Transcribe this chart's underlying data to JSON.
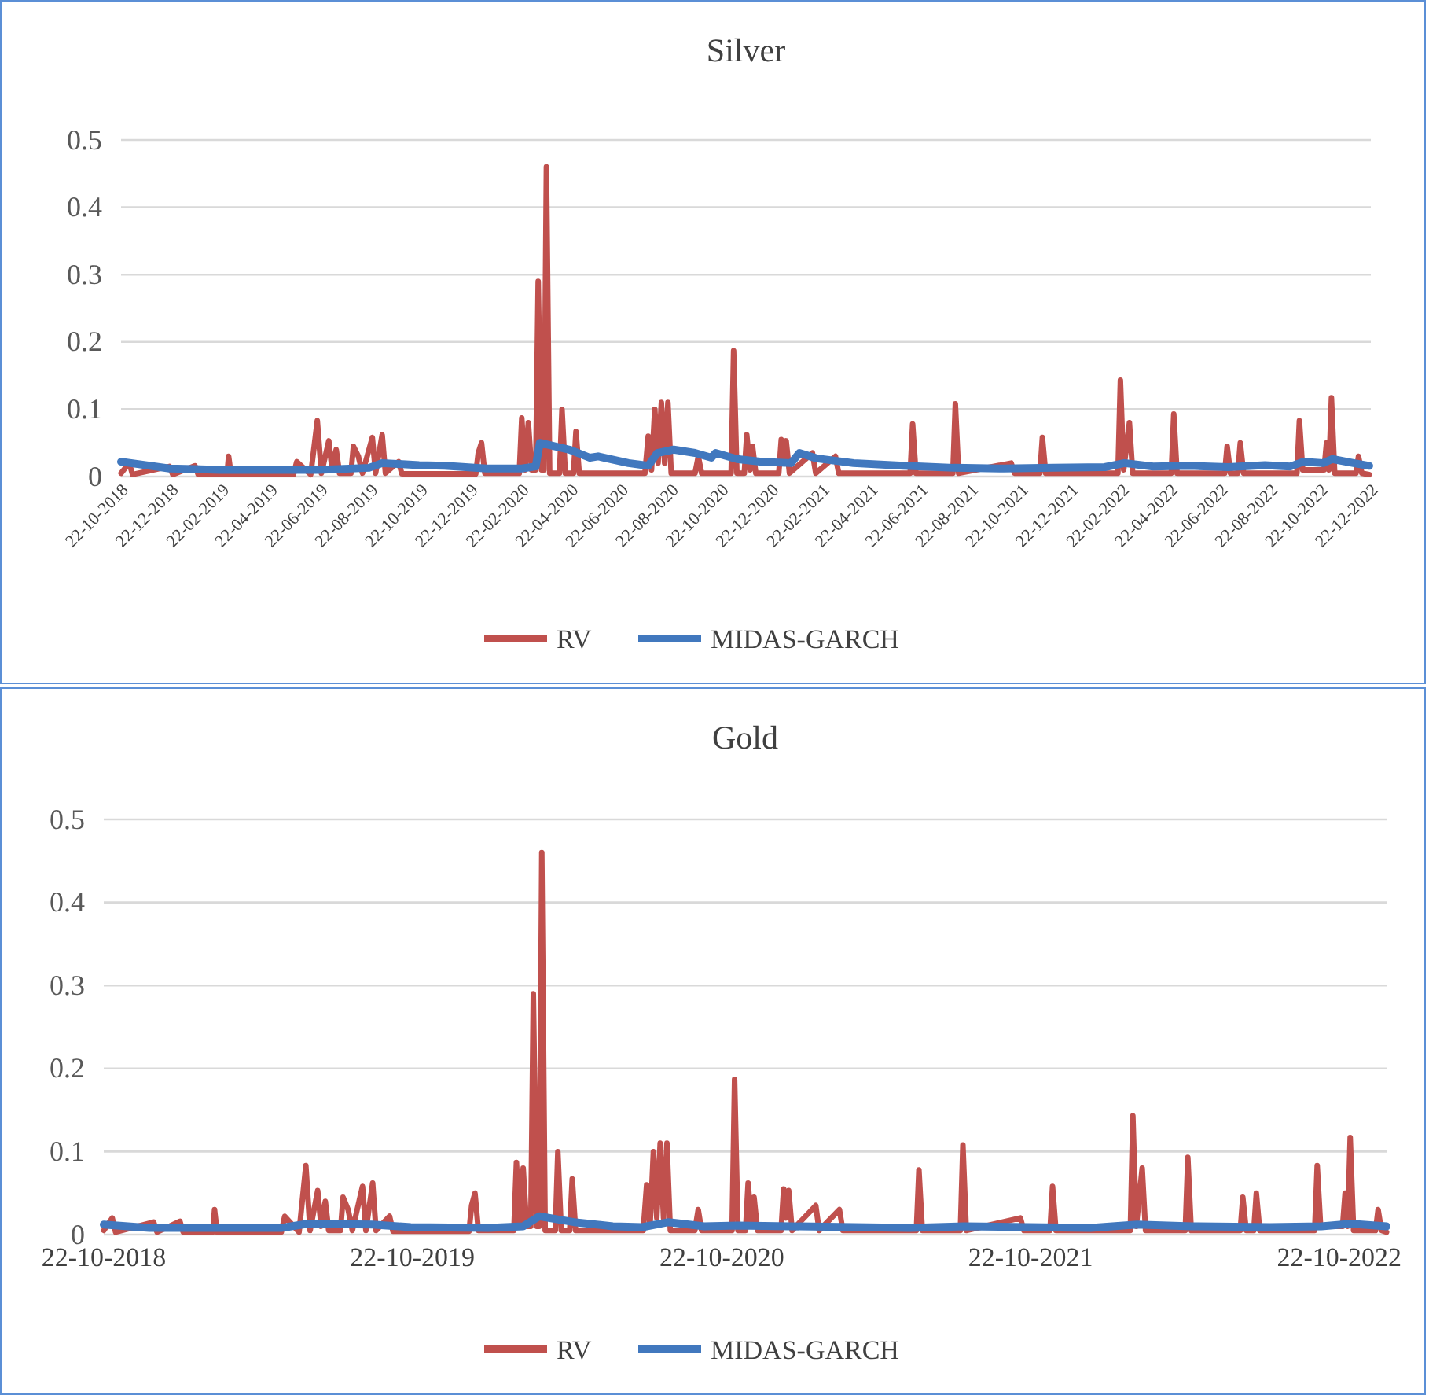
{
  "chart_data": [
    {
      "type": "line",
      "title": "Silver",
      "xlim": [
        "2018-10-22",
        "2022-12-22"
      ],
      "ylim": [
        0,
        0.5
      ],
      "yticks": [
        0,
        0.1,
        0.2,
        0.3,
        0.4,
        0.5
      ],
      "grid": "y",
      "legend": "bottom",
      "xticks": [
        {
          "value": "2018-10-22",
          "label": "22-10-2018"
        },
        {
          "value": "2018-12-22",
          "label": "22-12-2018"
        },
        {
          "value": "2019-02-22",
          "label": "22-02-2019"
        },
        {
          "value": "2019-04-22",
          "label": "22-04-2019"
        },
        {
          "value": "2019-06-22",
          "label": "22-06-2019"
        },
        {
          "value": "2019-08-22",
          "label": "22-08-2019"
        },
        {
          "value": "2019-10-22",
          "label": "22-10-2019"
        },
        {
          "value": "2019-12-22",
          "label": "22-12-2019"
        },
        {
          "value": "2020-02-22",
          "label": "22-02-2020"
        },
        {
          "value": "2020-04-22",
          "label": "22-04-2020"
        },
        {
          "value": "2020-06-22",
          "label": "22-06-2020"
        },
        {
          "value": "2020-08-22",
          "label": "22-08-2020"
        },
        {
          "value": "2020-10-22",
          "label": "22-10-2020"
        },
        {
          "value": "2020-12-22",
          "label": "22-12-2020"
        },
        {
          "value": "2021-02-22",
          "label": "22-02-2021"
        },
        {
          "value": "2021-04-22",
          "label": "22-04-2021"
        },
        {
          "value": "2021-06-22",
          "label": "22-06-2021"
        },
        {
          "value": "2021-08-22",
          "label": "22-08-2021"
        },
        {
          "value": "2021-10-22",
          "label": "22-10-2021"
        },
        {
          "value": "2021-12-22",
          "label": "22-12-2021"
        },
        {
          "value": "2022-02-22",
          "label": "22-02-2022"
        },
        {
          "value": "2022-04-22",
          "label": "22-04-2022"
        },
        {
          "value": "2022-06-22",
          "label": "22-06-2022"
        },
        {
          "value": "2022-08-22",
          "label": "22-08-2022"
        },
        {
          "value": "2022-10-22",
          "label": "22-10-2022"
        },
        {
          "value": "2022-12-22",
          "label": "22-12-2022"
        }
      ],
      "series": [
        {
          "name": "RV",
          "color": "#c0504d",
          "x": [
            "2018-10-22",
            "2018-11-01",
            "2018-11-05",
            "2018-12-20",
            "2018-12-24",
            "2019-01-20",
            "2019-01-24",
            "2019-02-28",
            "2019-03-02",
            "2019-03-05",
            "2019-05-20",
            "2019-05-24",
            "2019-06-10",
            "2019-06-18",
            "2019-06-23",
            "2019-07-02",
            "2019-07-06",
            "2019-07-11",
            "2019-07-15",
            "2019-07-29",
            "2019-08-01",
            "2019-08-07",
            "2019-08-12",
            "2019-08-24",
            "2019-08-28",
            "2019-09-05",
            "2019-09-09",
            "2019-09-25",
            "2019-09-29",
            "2019-12-28",
            "2019-12-31",
            "2020-01-04",
            "2020-01-08",
            "2020-02-19",
            "2020-02-22",
            "2020-02-26",
            "2020-03-01",
            "2020-03-05",
            "2020-03-10",
            "2020-03-13",
            "2020-03-17",
            "2020-03-20",
            "2020-03-23",
            "2020-03-27",
            "2020-04-08",
            "2020-04-11",
            "2020-04-15",
            "2020-04-25",
            "2020-04-28",
            "2020-05-02",
            "2020-07-21",
            "2020-07-25",
            "2020-07-29",
            "2020-08-02",
            "2020-08-06",
            "2020-08-10",
            "2020-08-14",
            "2020-08-18",
            "2020-08-22",
            "2020-09-20",
            "2020-09-24",
            "2020-09-28",
            "2020-11-03",
            "2020-11-06",
            "2020-11-10",
            "2020-11-19",
            "2020-11-22",
            "2020-11-26",
            "2020-11-29",
            "2020-12-03",
            "2020-12-31",
            "2021-01-03",
            "2021-01-06",
            "2021-01-09",
            "2021-01-13",
            "2021-02-10",
            "2021-02-14",
            "2021-03-10",
            "2021-03-14",
            "2021-06-09",
            "2021-06-12",
            "2021-06-16",
            "2021-07-31",
            "2021-08-03",
            "2021-08-07",
            "2021-10-10",
            "2021-10-14",
            "2021-11-14",
            "2021-11-17",
            "2021-11-21",
            "2022-02-17",
            "2022-02-20",
            "2022-02-24",
            "2022-03-03",
            "2022-03-07",
            "2022-04-23",
            "2022-04-26",
            "2022-04-30",
            "2022-06-27",
            "2022-06-30",
            "2022-07-04",
            "2022-07-13",
            "2022-07-16",
            "2022-07-20",
            "2022-09-23",
            "2022-09-26",
            "2022-09-30",
            "2022-10-26",
            "2022-10-29",
            "2022-11-01",
            "2022-11-04",
            "2022-11-08",
            "2022-12-04",
            "2022-12-07",
            "2022-12-11",
            "2022-12-20"
          ],
          "values": [
            0.005,
            0.02,
            0.003,
            0.015,
            0.003,
            0.016,
            0.003,
            0.003,
            0.03,
            0.003,
            0.003,
            0.022,
            0.003,
            0.083,
            0.005,
            0.053,
            0.01,
            0.04,
            0.005,
            0.005,
            0.045,
            0.03,
            0.005,
            0.058,
            0.005,
            0.062,
            0.005,
            0.022,
            0.004,
            0.004,
            0.035,
            0.05,
            0.005,
            0.005,
            0.087,
            0.01,
            0.08,
            0.01,
            0.01,
            0.29,
            0.01,
            0.01,
            0.46,
            0.005,
            0.005,
            0.1,
            0.005,
            0.005,
            0.067,
            0.005,
            0.005,
            0.06,
            0.01,
            0.1,
            0.02,
            0.11,
            0.02,
            0.11,
            0.005,
            0.005,
            0.03,
            0.005,
            0.005,
            0.187,
            0.005,
            0.005,
            0.062,
            0.01,
            0.045,
            0.005,
            0.005,
            0.055,
            0.02,
            0.053,
            0.005,
            0.035,
            0.005,
            0.03,
            0.005,
            0.005,
            0.078,
            0.005,
            0.005,
            0.108,
            0.005,
            0.02,
            0.005,
            0.005,
            0.058,
            0.005,
            0.005,
            0.143,
            0.01,
            0.08,
            0.005,
            0.005,
            0.093,
            0.005,
            0.005,
            0.045,
            0.005,
            0.005,
            0.05,
            0.005,
            0.005,
            0.083,
            0.01,
            0.01,
            0.05,
            0.01,
            0.117,
            0.005,
            0.005,
            0.03,
            0.005,
            0.003
          ]
        },
        {
          "name": "MIDAS-GARCH",
          "color": "#4178be",
          "x": [
            "2018-10-22",
            "2018-12-20",
            "2019-02-20",
            "2019-06-20",
            "2019-08-20",
            "2019-09-05",
            "2019-10-20",
            "2019-11-20",
            "2020-01-10",
            "2020-02-22",
            "2020-03-10",
            "2020-03-15",
            "2020-04-20",
            "2020-05-15",
            "2020-05-25",
            "2020-07-01",
            "2020-07-25",
            "2020-08-05",
            "2020-08-25",
            "2020-09-20",
            "2020-10-10",
            "2020-10-15",
            "2020-11-10",
            "2020-12-10",
            "2021-01-15",
            "2021-01-25",
            "2021-02-15",
            "2021-04-01",
            "2021-06-01",
            "2021-08-01",
            "2021-10-01",
            "2021-12-01",
            "2022-02-01",
            "2022-02-25",
            "2022-04-01",
            "2022-05-15",
            "2022-07-01",
            "2022-08-15",
            "2022-09-15",
            "2022-10-01",
            "2022-10-25",
            "2022-11-05",
            "2022-12-01",
            "2022-12-20"
          ],
          "values": [
            0.022,
            0.012,
            0.01,
            0.01,
            0.013,
            0.02,
            0.017,
            0.016,
            0.012,
            0.012,
            0.015,
            0.05,
            0.04,
            0.028,
            0.03,
            0.02,
            0.016,
            0.035,
            0.04,
            0.035,
            0.028,
            0.035,
            0.026,
            0.022,
            0.02,
            0.035,
            0.027,
            0.02,
            0.016,
            0.013,
            0.012,
            0.013,
            0.014,
            0.02,
            0.015,
            0.016,
            0.014,
            0.017,
            0.015,
            0.022,
            0.02,
            0.026,
            0.02,
            0.016
          ]
        }
      ]
    },
    {
      "type": "line",
      "title": "Gold",
      "xlim": [
        "2018-10-22",
        "2022-12-17"
      ],
      "ylim": [
        0,
        0.5
      ],
      "yticks": [
        0,
        0.1,
        0.2,
        0.3,
        0.4,
        0.5
      ],
      "grid": "y",
      "legend": "bottom",
      "xticks": [
        {
          "value": "2018-10-22",
          "label": "22-10-2018"
        },
        {
          "value": "2019-10-22",
          "label": "22-10-2019"
        },
        {
          "value": "2020-10-22",
          "label": "22-10-2020"
        },
        {
          "value": "2021-10-22",
          "label": "22-10-2021"
        },
        {
          "value": "2022-10-22",
          "label": "22-10-2022"
        }
      ],
      "series": [
        {
          "name": "RV",
          "color": "#c0504d",
          "x": [
            "2018-10-22",
            "2018-11-01",
            "2018-11-05",
            "2018-12-20",
            "2018-12-24",
            "2019-01-20",
            "2019-01-24",
            "2019-02-28",
            "2019-03-02",
            "2019-03-05",
            "2019-05-20",
            "2019-05-24",
            "2019-06-10",
            "2019-06-18",
            "2019-06-23",
            "2019-07-02",
            "2019-07-06",
            "2019-07-11",
            "2019-07-15",
            "2019-07-29",
            "2019-08-01",
            "2019-08-07",
            "2019-08-12",
            "2019-08-24",
            "2019-08-28",
            "2019-09-05",
            "2019-09-09",
            "2019-09-25",
            "2019-09-29",
            "2019-12-28",
            "2019-12-31",
            "2020-01-04",
            "2020-01-08",
            "2020-02-19",
            "2020-02-22",
            "2020-02-26",
            "2020-03-01",
            "2020-03-05",
            "2020-03-10",
            "2020-03-13",
            "2020-03-17",
            "2020-03-20",
            "2020-03-23",
            "2020-03-27",
            "2020-04-08",
            "2020-04-11",
            "2020-04-15",
            "2020-04-25",
            "2020-04-28",
            "2020-05-02",
            "2020-07-21",
            "2020-07-25",
            "2020-07-29",
            "2020-08-02",
            "2020-08-06",
            "2020-08-10",
            "2020-08-14",
            "2020-08-18",
            "2020-08-22",
            "2020-09-20",
            "2020-09-24",
            "2020-09-28",
            "2020-11-03",
            "2020-11-06",
            "2020-11-10",
            "2020-11-19",
            "2020-11-22",
            "2020-11-26",
            "2020-11-29",
            "2020-12-03",
            "2020-12-31",
            "2021-01-03",
            "2021-01-06",
            "2021-01-09",
            "2021-01-13",
            "2021-02-10",
            "2021-02-14",
            "2021-03-10",
            "2021-03-14",
            "2021-06-09",
            "2021-06-12",
            "2021-06-16",
            "2021-07-31",
            "2021-08-03",
            "2021-08-07",
            "2021-10-10",
            "2021-10-14",
            "2021-11-14",
            "2021-11-17",
            "2021-11-21",
            "2022-02-17",
            "2022-02-20",
            "2022-02-24",
            "2022-03-03",
            "2022-03-07",
            "2022-04-23",
            "2022-04-26",
            "2022-04-30",
            "2022-06-27",
            "2022-06-30",
            "2022-07-04",
            "2022-07-13",
            "2022-07-16",
            "2022-07-20",
            "2022-09-23",
            "2022-09-26",
            "2022-09-30",
            "2022-10-26",
            "2022-10-29",
            "2022-11-01",
            "2022-11-04",
            "2022-11-08",
            "2022-12-04",
            "2022-12-07",
            "2022-12-11",
            "2022-12-17"
          ],
          "values": [
            0.005,
            0.02,
            0.003,
            0.015,
            0.003,
            0.016,
            0.003,
            0.003,
            0.03,
            0.003,
            0.003,
            0.022,
            0.003,
            0.083,
            0.005,
            0.053,
            0.01,
            0.04,
            0.005,
            0.005,
            0.045,
            0.03,
            0.005,
            0.058,
            0.005,
            0.062,
            0.005,
            0.022,
            0.004,
            0.004,
            0.035,
            0.05,
            0.005,
            0.005,
            0.087,
            0.01,
            0.08,
            0.01,
            0.01,
            0.29,
            0.01,
            0.01,
            0.46,
            0.005,
            0.005,
            0.1,
            0.005,
            0.005,
            0.067,
            0.005,
            0.005,
            0.06,
            0.01,
            0.1,
            0.02,
            0.11,
            0.02,
            0.11,
            0.005,
            0.005,
            0.03,
            0.005,
            0.005,
            0.187,
            0.005,
            0.005,
            0.062,
            0.01,
            0.045,
            0.005,
            0.005,
            0.055,
            0.02,
            0.053,
            0.005,
            0.035,
            0.005,
            0.03,
            0.005,
            0.005,
            0.078,
            0.005,
            0.005,
            0.108,
            0.005,
            0.02,
            0.005,
            0.005,
            0.058,
            0.005,
            0.005,
            0.143,
            0.01,
            0.08,
            0.005,
            0.005,
            0.093,
            0.005,
            0.005,
            0.045,
            0.005,
            0.005,
            0.05,
            0.005,
            0.005,
            0.083,
            0.01,
            0.01,
            0.05,
            0.01,
            0.117,
            0.005,
            0.005,
            0.03,
            0.005,
            0.003
          ]
        },
        {
          "name": "MIDAS-GARCH",
          "color": "#4178be",
          "x": [
            "2018-10-22",
            "2018-12-15",
            "2019-05-20",
            "2019-06-20",
            "2019-09-05",
            "2019-10-20",
            "2020-01-20",
            "2020-03-01",
            "2020-03-20",
            "2020-04-30",
            "2020-06-15",
            "2020-07-20",
            "2020-08-20",
            "2020-10-01",
            "2020-11-10",
            "2021-01-10",
            "2021-06-01",
            "2021-08-05",
            "2022-01-01",
            "2022-02-25",
            "2022-05-01",
            "2022-08-01",
            "2022-10-01",
            "2022-11-05",
            "2022-12-17"
          ],
          "values": [
            0.012,
            0.008,
            0.008,
            0.013,
            0.012,
            0.009,
            0.008,
            0.01,
            0.022,
            0.015,
            0.01,
            0.009,
            0.015,
            0.01,
            0.011,
            0.01,
            0.008,
            0.01,
            0.008,
            0.012,
            0.01,
            0.009,
            0.01,
            0.013,
            0.01
          ]
        }
      ]
    }
  ]
}
